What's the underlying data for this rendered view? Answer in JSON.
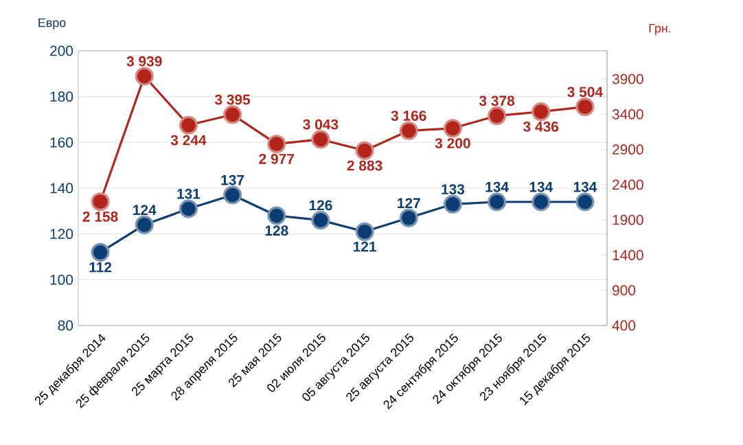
{
  "chart_data": {
    "type": "line",
    "ylabel": "Евро",
    "y2label": "Грн.",
    "categories": [
      "25 декабря 2014",
      "25 февраля 2015",
      "25 марта 2015",
      "28 апреля 2015",
      "25 мая 2015",
      "02 июля 2015",
      "05 августа 2015",
      "25 августа 2015",
      "24 сентября 2015",
      "24 октября 2015",
      "23 ноября 2015",
      "15 декабря 2015"
    ],
    "series": [
      {
        "color": "#0b3d73",
        "values": [
          112,
          124,
          131,
          137,
          128,
          126,
          121,
          127,
          133,
          134,
          134,
          134
        ],
        "value_labels": [
          "112",
          "124",
          "131",
          "137",
          "128",
          "126",
          "121",
          "127",
          "133",
          "134",
          "134",
          "134"
        ]
      },
      {
        "color": "#b3241a",
        "axis": "y2",
        "values": [
          2158,
          3939,
          3244,
          3395,
          2977,
          3043,
          2883,
          3166,
          3200,
          3378,
          3436,
          3504
        ],
        "value_labels": [
          "2 158",
          "3 939",
          "3 244",
          "3 395",
          "2 977",
          "3 043",
          "2 883",
          "3 166",
          "3 200",
          "3 378",
          "3 436",
          "3 504"
        ]
      }
    ],
    "ylim": [
      80,
      200
    ],
    "yticks": [
      80,
      100,
      120,
      140,
      160,
      180,
      200
    ],
    "y2lim": [
      400,
      4300
    ],
    "y2ticks": [
      400,
      900,
      1400,
      1900,
      2400,
      2900,
      3400,
      3900
    ],
    "grid": "y",
    "marker": "circle",
    "line_style": "solid"
  }
}
